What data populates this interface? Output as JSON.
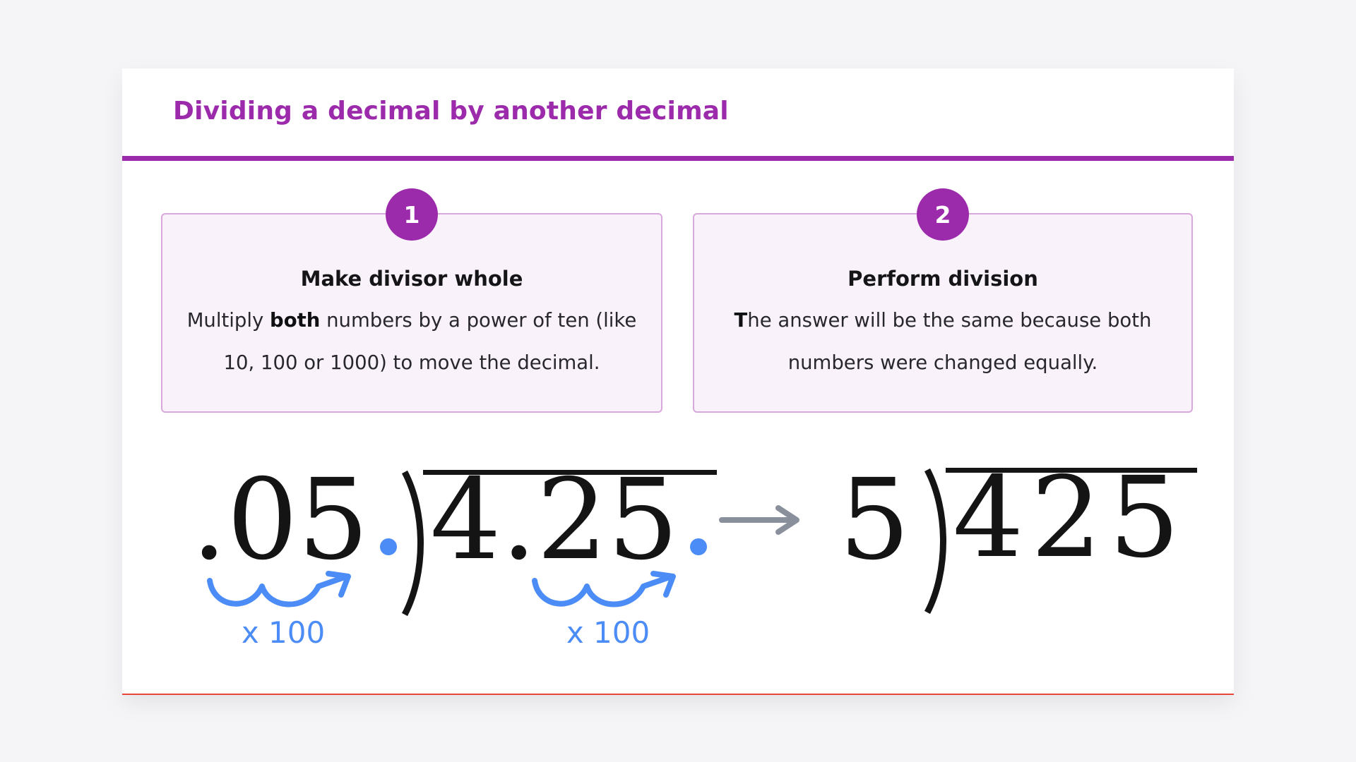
{
  "title": "Dividing a decimal by another decimal",
  "colors": {
    "accent_purple": "#9c2bac",
    "card_border": "#d9a8dd",
    "card_bg": "#faf2fb",
    "blue": "#4b8cf6",
    "arrow_gray": "#8a8f9c",
    "bottom_line_red": "#e8453c",
    "page_bg": "#f5f5f7",
    "math_black": "#141414"
  },
  "steps": [
    {
      "number": "1",
      "heading": "Make divisor whole",
      "body": [
        {
          "t": "Multiply ",
          "b": false
        },
        {
          "t": "both",
          "b": true
        },
        {
          "t": " numbers by a power of ten (like 10, 100 or 1000) to move the decimal.",
          "b": false
        }
      ]
    },
    {
      "number": "2",
      "heading": "Perform division",
      "body": [
        {
          "t": "T",
          "b": true
        },
        {
          "t": "he answer will be the same because both numbers were changed equally.",
          "b": false
        }
      ]
    }
  ],
  "math": {
    "divisor": ".05",
    "dividend": "4.25",
    "divisor_multiplier": "x 100",
    "dividend_multiplier": "x 100",
    "result_divisor": "5",
    "result_dividend": "425"
  }
}
